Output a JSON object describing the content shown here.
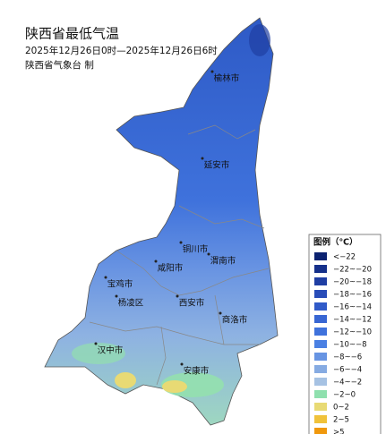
{
  "header": {
    "title": "陕西省最低气温",
    "subtitle": "2025年12月26日0时—2025年12月26日6时",
    "agency": "陕西省气象台  制"
  },
  "map": {
    "cities": [
      "榆林市",
      "延安市",
      "铜川市",
      "咸阳市",
      "渭南市",
      "宝鸡市",
      "杨凌区",
      "西安市",
      "商洛市",
      "汉中市",
      "安康市"
    ]
  },
  "legend": {
    "title": "图例（℃）",
    "items": [
      {
        "label": "<−22",
        "color": "#0b2270"
      },
      {
        "label": "−22~−20",
        "color": "#15308a"
      },
      {
        "label": "−20~−18",
        "color": "#1f3ea3"
      },
      {
        "label": "−18~−16",
        "color": "#284cb8"
      },
      {
        "label": "−16~−14",
        "color": "#305ac8"
      },
      {
        "label": "−14~−12",
        "color": "#3866d3"
      },
      {
        "label": "−12~−10",
        "color": "#3f72dc"
      },
      {
        "label": "−10~−8",
        "color": "#4a80e3"
      },
      {
        "label": "−8~−6",
        "color": "#6794e3"
      },
      {
        "label": "−6~−4",
        "color": "#86abe2"
      },
      {
        "label": "−4~−2",
        "color": "#a6c2e3"
      },
      {
        "label": "−2~0",
        "color": "#8fe0ae"
      },
      {
        "label": "0~2",
        "color": "#e8da74"
      },
      {
        "label": "2~5",
        "color": "#f0c23a"
      },
      {
        "label": ">5",
        "color": "#f0980c"
      }
    ]
  }
}
